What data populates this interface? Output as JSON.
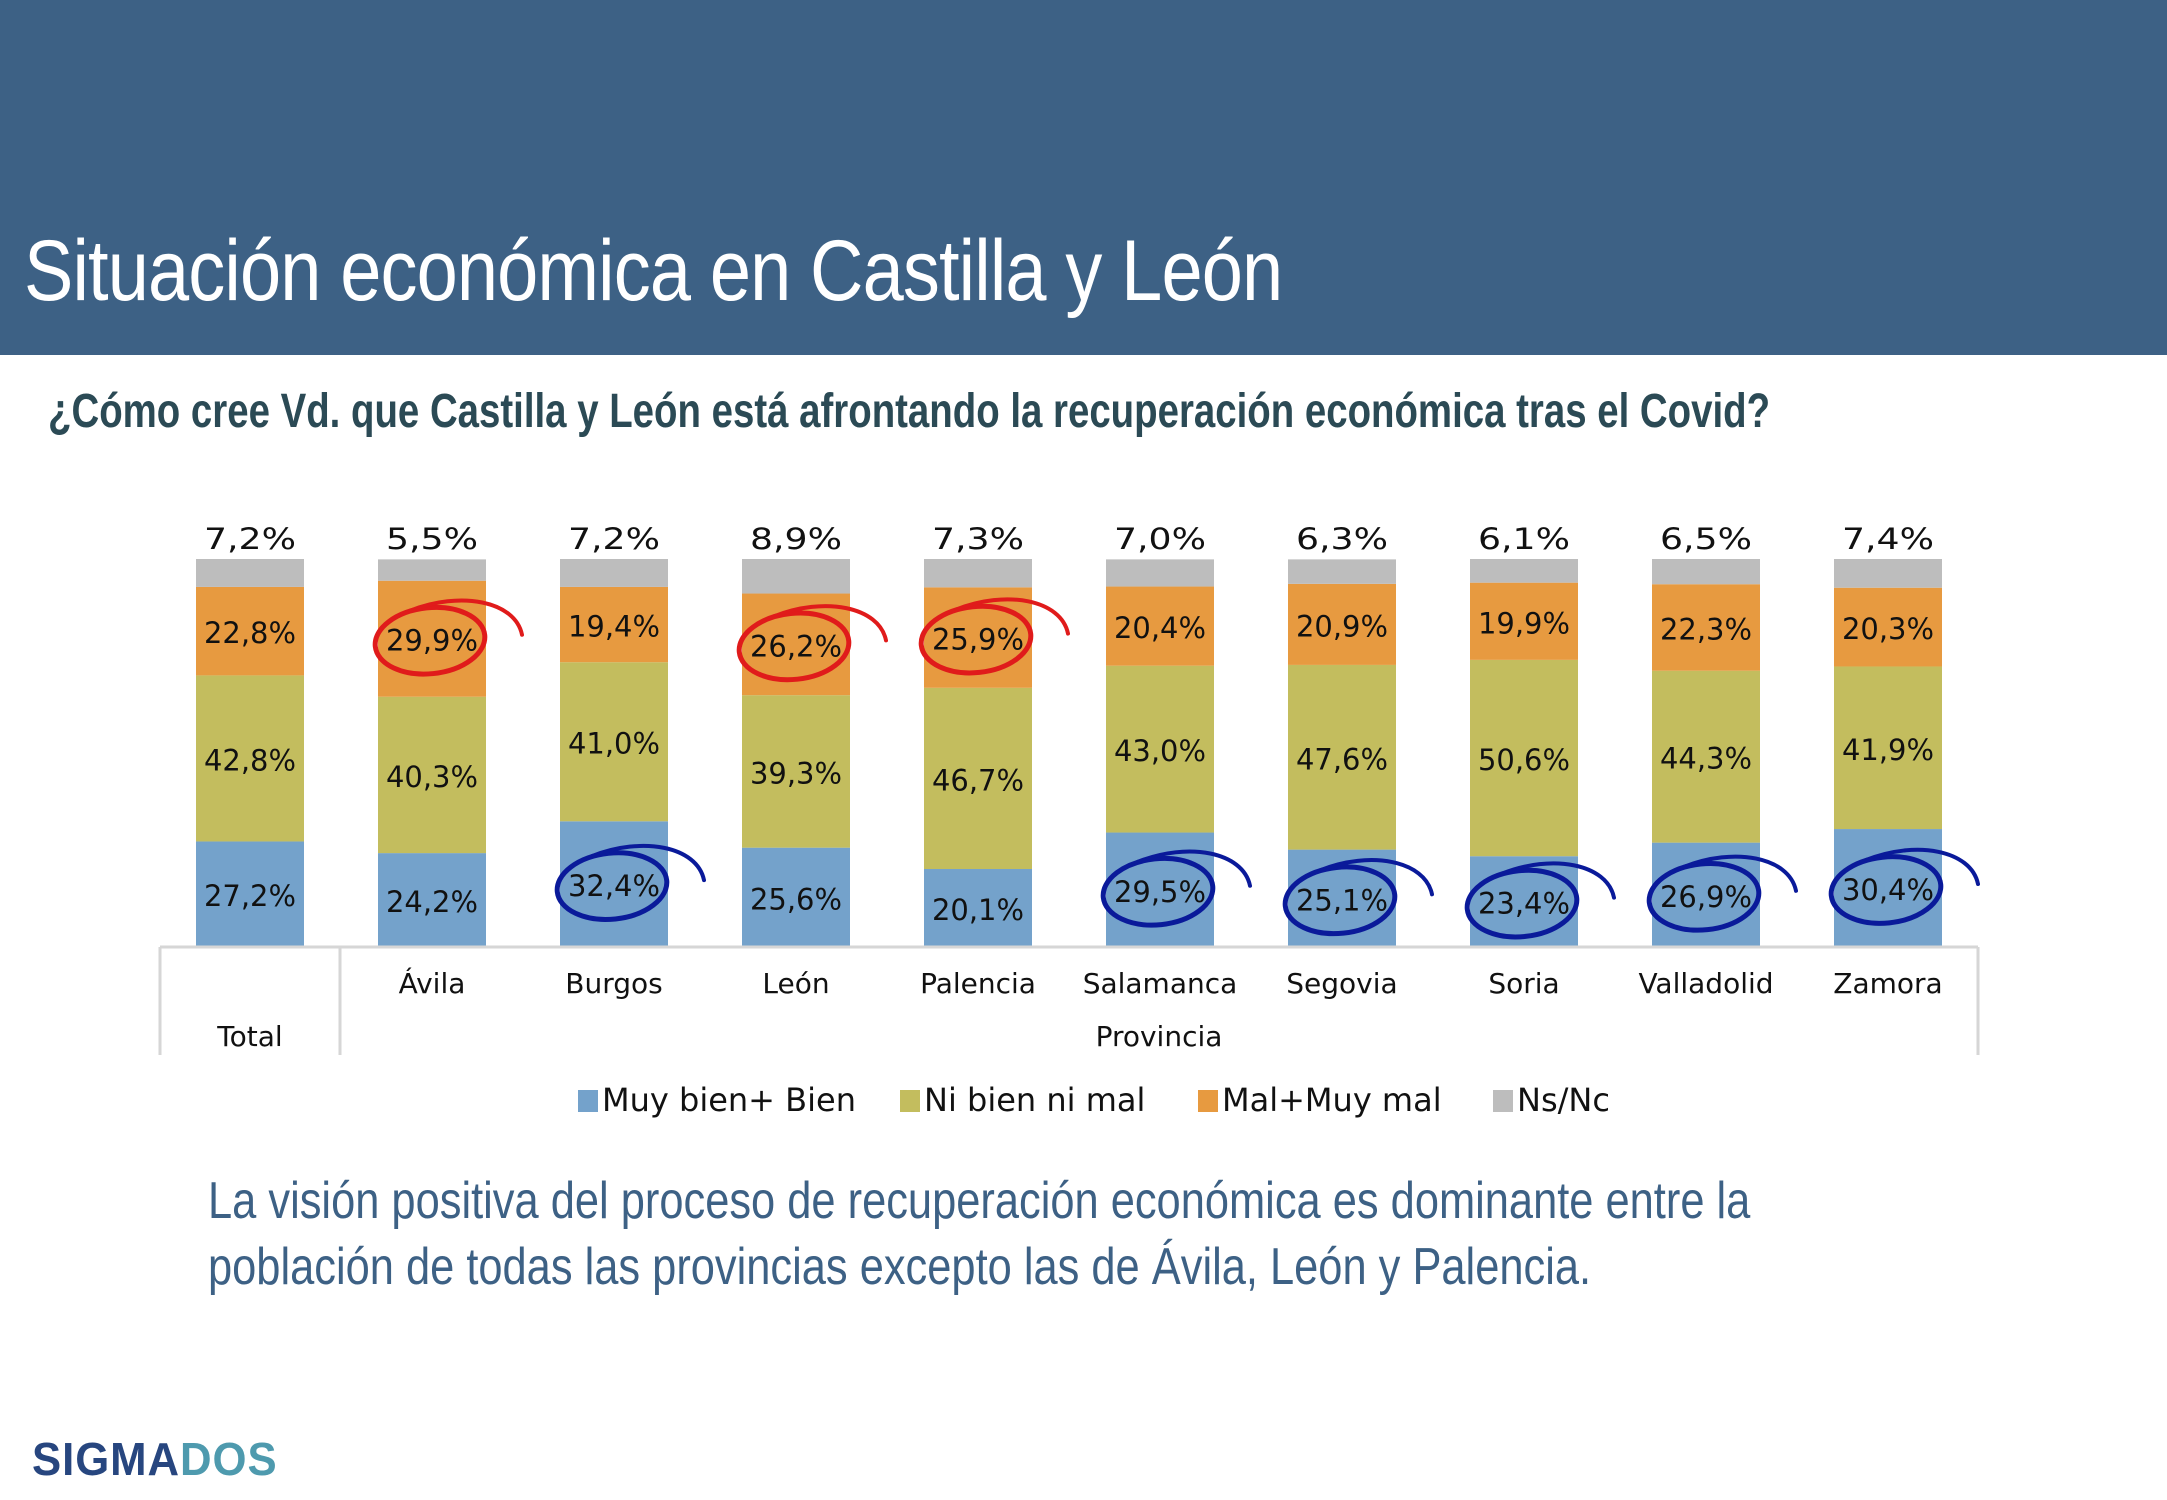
{
  "header": {
    "title": "Situación económica en Castilla y León"
  },
  "question": "¿Cómo cree Vd. que Castilla y León está afrontando la recuperación económica tras el Covid?",
  "conclusion": {
    "line1": "La visión positiva del proceso de recuperación económica es dominante entre la",
    "line2": "población de todas las provincias excepto las de Ávila, León y Palencia."
  },
  "logo": {
    "part1": "SIGMA",
    "part2": "DOS"
  },
  "colors": {
    "header_bg": "#3d6185",
    "muy_bien": "#74a2cb",
    "ni_bien": "#c3bd5e",
    "mal": "#e79a40",
    "nsnc": "#bdbdbd",
    "highlight_red": "#e01b1b",
    "highlight_blue": "#0a1a9a"
  },
  "chart_data": {
    "type": "bar",
    "stacked": true,
    "title": "",
    "xlabel": "",
    "ylabel": "",
    "ylim": [
      0,
      100
    ],
    "grid": false,
    "legend_position": "bottom",
    "categories": [
      "Total",
      "Ávila",
      "Burgos",
      "León",
      "Palencia",
      "Salamanca",
      "Segovia",
      "Soria",
      "Valladolid",
      "Zamora"
    ],
    "group_labels": [
      {
        "label": "Total",
        "categories": [
          "Total"
        ]
      },
      {
        "label": "Provincia",
        "categories": [
          "Ávila",
          "Burgos",
          "León",
          "Palencia",
          "Salamanca",
          "Segovia",
          "Soria",
          "Valladolid",
          "Zamora"
        ]
      }
    ],
    "series": [
      {
        "name": "Muy bien+ Bien",
        "color": "#74a2cb",
        "values": [
          27.2,
          24.2,
          32.4,
          25.6,
          20.1,
          29.5,
          25.1,
          23.4,
          26.9,
          30.4
        ],
        "labels": [
          "27,2%",
          "24,2%",
          "32,4%",
          "25,6%",
          "20,1%",
          "29,5%",
          "25,1%",
          "23,4%",
          "26,9%",
          "30,4%"
        ]
      },
      {
        "name": "Ni bien ni mal",
        "color": "#c3bd5e",
        "values": [
          42.8,
          40.3,
          41.0,
          39.3,
          46.7,
          43.0,
          47.6,
          50.6,
          44.3,
          41.9
        ],
        "labels": [
          "42,8%",
          "40,3%",
          "41,0%",
          "39,3%",
          "46,7%",
          "43,0%",
          "47,6%",
          "50,6%",
          "44,3%",
          "41,9%"
        ]
      },
      {
        "name": "Mal+Muy mal",
        "color": "#e79a40",
        "values": [
          22.8,
          29.9,
          19.4,
          26.2,
          25.9,
          20.4,
          20.9,
          19.9,
          22.3,
          20.3
        ],
        "labels": [
          "22,8%",
          "29,9%",
          "19,4%",
          "26,2%",
          "25,9%",
          "20,4%",
          "20,9%",
          "19,9%",
          "22,3%",
          "20,3%"
        ]
      },
      {
        "name": "Ns/Nc",
        "color": "#bdbdbd",
        "values": [
          7.2,
          5.5,
          7.2,
          8.9,
          7.3,
          7.0,
          6.3,
          6.1,
          6.5,
          7.4
        ],
        "labels": [
          "7,2%",
          "5,5%",
          "7,2%",
          "8,9%",
          "7,3%",
          "7,0%",
          "6,3%",
          "6,1%",
          "6,5%",
          "7,4%"
        ]
      }
    ],
    "annotations": [
      {
        "type": "hand-drawn-circle",
        "color": "red",
        "series": "Mal+Muy mal",
        "categories": [
          "Ávila",
          "León",
          "Palencia"
        ]
      },
      {
        "type": "hand-drawn-circle",
        "color": "blue",
        "series": "Muy bien+ Bien",
        "categories": [
          "Burgos",
          "Salamanca",
          "Segovia",
          "Soria",
          "Valladolid",
          "Zamora"
        ]
      }
    ]
  }
}
